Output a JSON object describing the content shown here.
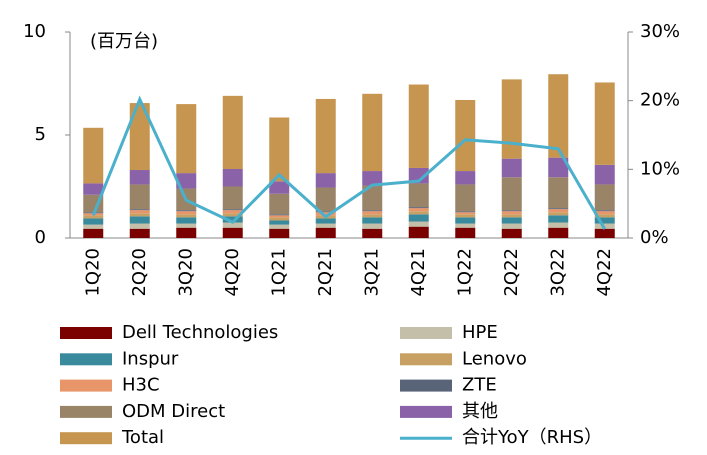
{
  "chart_data": {
    "type": "bar",
    "unit_label": "(百万台)",
    "categories": [
      "1Q20",
      "2Q20",
      "3Q20",
      "4Q20",
      "1Q21",
      "2Q21",
      "3Q21",
      "4Q21",
      "1Q22",
      "2Q22",
      "3Q22",
      "4Q22"
    ],
    "series": [
      {
        "name": "Dell Technologies",
        "color": "#7b0000",
        "values": [
          0.45,
          0.45,
          0.5,
          0.5,
          0.45,
          0.5,
          0.45,
          0.55,
          0.5,
          0.45,
          0.5,
          0.45
        ]
      },
      {
        "name": "HPE",
        "color": "#c4bfa8",
        "values": [
          0.2,
          0.25,
          0.2,
          0.25,
          0.2,
          0.2,
          0.25,
          0.25,
          0.2,
          0.25,
          0.25,
          0.25
        ]
      },
      {
        "name": "Inspur",
        "color": "#3a8a9e",
        "values": [
          0.3,
          0.35,
          0.3,
          0.3,
          0.2,
          0.25,
          0.3,
          0.35,
          0.3,
          0.3,
          0.35,
          0.3
        ]
      },
      {
        "name": "Lenovo",
        "color": "#c8a064",
        "values": [
          0.15,
          0.15,
          0.15,
          0.15,
          0.15,
          0.15,
          0.15,
          0.15,
          0.15,
          0.15,
          0.15,
          0.15
        ]
      },
      {
        "name": "H3C",
        "color": "#e8956a",
        "values": [
          0.1,
          0.15,
          0.15,
          0.15,
          0.1,
          0.15,
          0.15,
          0.15,
          0.1,
          0.15,
          0.15,
          0.15
        ]
      },
      {
        "name": "ZTE",
        "color": "#5a6478",
        "values": [
          0.05,
          0.05,
          0.05,
          0.05,
          0.05,
          0.05,
          0.05,
          0.05,
          0.05,
          0.05,
          0.05,
          0.05
        ]
      },
      {
        "name": "ODM Direct",
        "color": "#9a8468",
        "values": [
          0.85,
          1.2,
          1.05,
          1.1,
          1.0,
          1.15,
          1.2,
          1.15,
          1.3,
          1.6,
          1.5,
          1.25
        ]
      },
      {
        "name": "其他",
        "color": "#8a62a8",
        "values": [
          0.55,
          0.7,
          0.75,
          0.85,
          0.6,
          0.7,
          0.7,
          0.75,
          0.65,
          0.9,
          0.95,
          0.95
        ]
      },
      {
        "name": "Total",
        "color": "#c69550",
        "values": [
          2.7,
          3.25,
          3.35,
          3.55,
          3.1,
          3.6,
          3.75,
          4.05,
          3.45,
          3.85,
          4.05,
          4.0
        ]
      },
      {
        "name": "合计YoY（RHS）",
        "color": "#4ab0cc",
        "type": "line",
        "axis": "y2",
        "values": [
          3.3,
          20.2,
          5.5,
          2.3,
          9.2,
          3.1,
          7.7,
          8.3,
          14.3,
          13.8,
          13.0,
          1.3
        ]
      }
    ],
    "ylim": [
      0,
      10
    ],
    "yticks": [
      0,
      5,
      10
    ],
    "y2lim": [
      0,
      30
    ],
    "y2ticks": [
      {
        "value": 0,
        "label": "0%"
      },
      {
        "value": 10,
        "label": "10%"
      },
      {
        "value": 20,
        "label": "20%"
      },
      {
        "value": 30,
        "label": "30%"
      }
    ],
    "stacked": true
  }
}
